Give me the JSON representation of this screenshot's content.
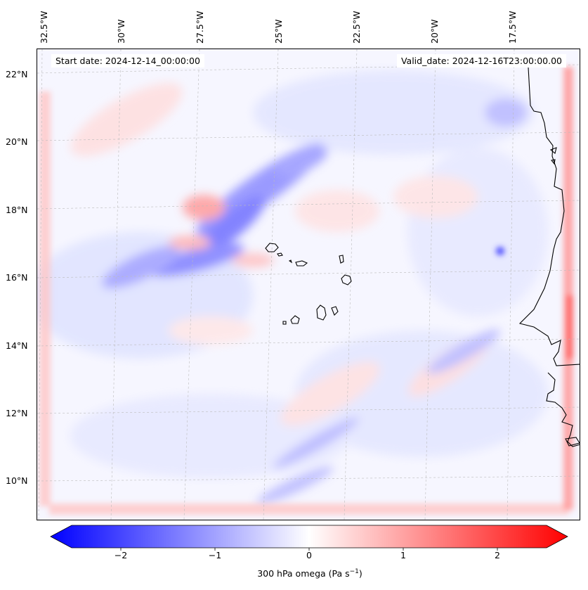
{
  "map": {
    "start_date_text": "Start date: 2024-12-14_00:00:00",
    "valid_date_text": "Valid_date: 2024-12-16T23:00:00.00",
    "lon_labels": [
      "32.5°W",
      "30°W",
      "27.5°W",
      "25°W",
      "22.5°W",
      "20°W",
      "17.5°W"
    ],
    "lat_labels": [
      "22°N",
      "20°N",
      "18°N",
      "16°N",
      "14°N",
      "12°N",
      "10°N"
    ],
    "field": "300 hPa omega",
    "projection_extent": {
      "lon_min": -33.0,
      "lon_max": -16.0,
      "lat_min": 9.0,
      "lat_max": 22.8
    }
  },
  "colorbar": {
    "title_main": "300 hPa omega (Pa s",
    "title_sup": "−1",
    "title_end": ")",
    "tick_labels": [
      "−2",
      "−1",
      "0",
      "1",
      "2"
    ],
    "range": [
      -2.6,
      2.6
    ],
    "extend": "both",
    "colormap": "bwr",
    "color_min": "#0000ff",
    "color_mid": "#ffffff",
    "color_max": "#ff0000"
  },
  "colors": {
    "coastline": "#000000",
    "gridline": "#bbbbbb"
  }
}
